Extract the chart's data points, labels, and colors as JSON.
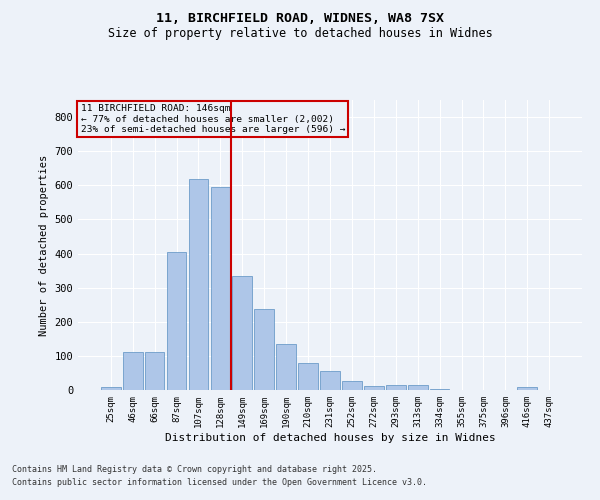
{
  "title1": "11, BIRCHFIELD ROAD, WIDNES, WA8 7SX",
  "title2": "Size of property relative to detached houses in Widnes",
  "xlabel": "Distribution of detached houses by size in Widnes",
  "ylabel": "Number of detached properties",
  "categories": [
    "25sqm",
    "46sqm",
    "66sqm",
    "87sqm",
    "107sqm",
    "128sqm",
    "149sqm",
    "169sqm",
    "190sqm",
    "210sqm",
    "231sqm",
    "252sqm",
    "272sqm",
    "293sqm",
    "313sqm",
    "334sqm",
    "355sqm",
    "375sqm",
    "396sqm",
    "416sqm",
    "437sqm"
  ],
  "values": [
    8,
    110,
    110,
    405,
    618,
    595,
    335,
    237,
    135,
    80,
    55,
    25,
    12,
    15,
    15,
    3,
    0,
    0,
    0,
    8,
    0
  ],
  "bar_color": "#aec6e8",
  "bar_edge_color": "#5a8fc2",
  "bg_color": "#edf2f9",
  "grid_color": "#ffffff",
  "vline_x": 5.5,
  "vline_color": "#cc0000",
  "annotation_title": "11 BIRCHFIELD ROAD: 146sqm",
  "annotation_line1": "← 77% of detached houses are smaller (2,002)",
  "annotation_line2": "23% of semi-detached houses are larger (596) →",
  "annotation_box_color": "#cc0000",
  "footer1": "Contains HM Land Registry data © Crown copyright and database right 2025.",
  "footer2": "Contains public sector information licensed under the Open Government Licence v3.0.",
  "ylim": [
    0,
    850
  ],
  "yticks": [
    0,
    100,
    200,
    300,
    400,
    500,
    600,
    700,
    800
  ]
}
